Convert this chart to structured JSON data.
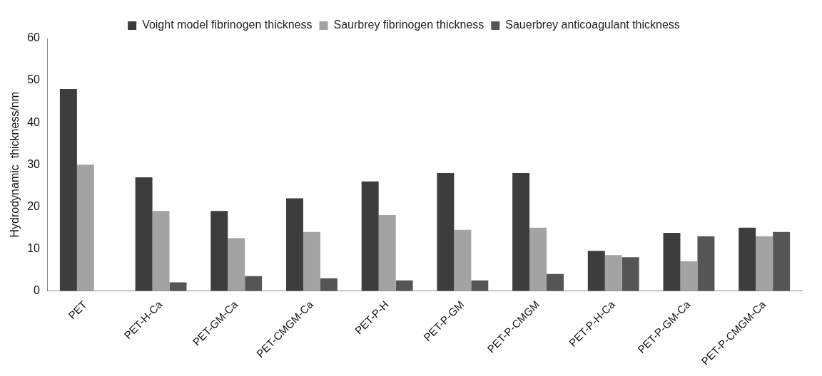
{
  "chart_data": {
    "type": "bar",
    "ylabel": "Hydrodynamic  thickness/nm",
    "categories": [
      "PET",
      "PET-H-Ca",
      "PET-GM-Ca",
      "PET-CMGM-Ca",
      "PET-P-H",
      "PET-P-GM",
      "PET-P-CMGM",
      "PET-P-H-Ca",
      "PET-P-GM-Ca",
      "PET-P-CMGM-Ca"
    ],
    "series": [
      {
        "name": "Voight model fibrinogen thickness",
        "color": "#3d3d3d",
        "values": [
          48,
          27,
          19,
          22,
          26,
          28,
          28,
          9.5,
          13.8,
          15
        ]
      },
      {
        "name": "Saurbrey fibrinogen thickness",
        "color": "#a3a3a3",
        "values": [
          30,
          19,
          12.5,
          14,
          18,
          14.5,
          15,
          8.5,
          7,
          13
        ]
      },
      {
        "name": "Sauerbrey anticoagulant thickness",
        "color": "#555555",
        "values": [
          null,
          2,
          3.5,
          3,
          2.5,
          2.5,
          4,
          8,
          13,
          14
        ]
      }
    ],
    "ylim": [
      0,
      60
    ],
    "yticks": [
      0,
      10,
      20,
      30,
      40,
      50,
      60
    ],
    "grid": false,
    "legend": "top"
  }
}
